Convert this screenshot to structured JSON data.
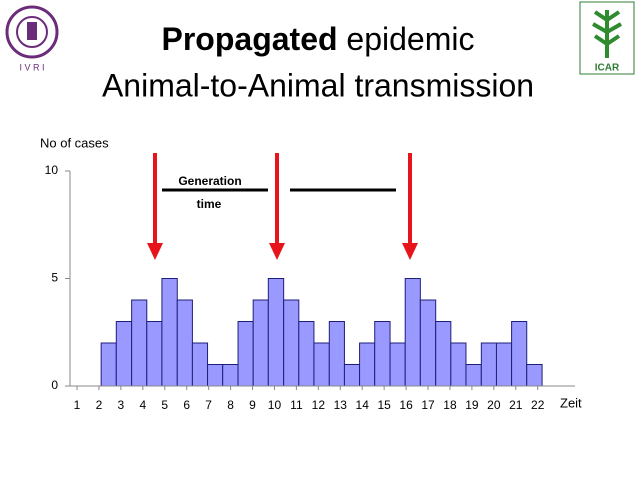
{
  "title_bold": "Propagated",
  "title_rest": " epidemic",
  "subtitle": "Animal-to-Animal transmission",
  "logo_left": "I V R I",
  "logo_right": "ICAR",
  "chart_data": {
    "type": "histogram",
    "y_label": "No of cases",
    "x_label": "Zeit",
    "annotation": [
      "Generation",
      "time"
    ],
    "bins": [
      2.1,
      2.79,
      3.49,
      4.18,
      4.87,
      5.57,
      6.26,
      6.95,
      7.64,
      8.34,
      9.03,
      9.72,
      10.42,
      11.11,
      11.8,
      12.5,
      13.19,
      13.88,
      14.57,
      15.27,
      15.96,
      16.65,
      17.35,
      18.04,
      18.73,
      19.43,
      20.12,
      20.81,
      21.5,
      22.2
    ],
    "values": [
      2,
      3,
      4,
      3,
      5,
      4,
      2,
      1,
      1,
      3,
      4,
      5,
      4,
      3,
      2,
      3,
      1,
      2,
      3,
      2,
      5,
      4,
      3,
      2,
      1,
      2,
      2,
      3,
      1
    ],
    "color": "#9999ff",
    "xlim": [
      0.68,
      23.7
    ],
    "xticks": [
      1,
      2,
      3,
      4,
      5,
      6,
      7,
      8,
      9,
      10,
      11,
      12,
      13,
      14,
      15,
      16,
      17,
      18,
      19,
      20,
      21,
      22
    ],
    "ylim": [
      0,
      10
    ],
    "yticks": [
      0,
      5,
      10
    ]
  }
}
